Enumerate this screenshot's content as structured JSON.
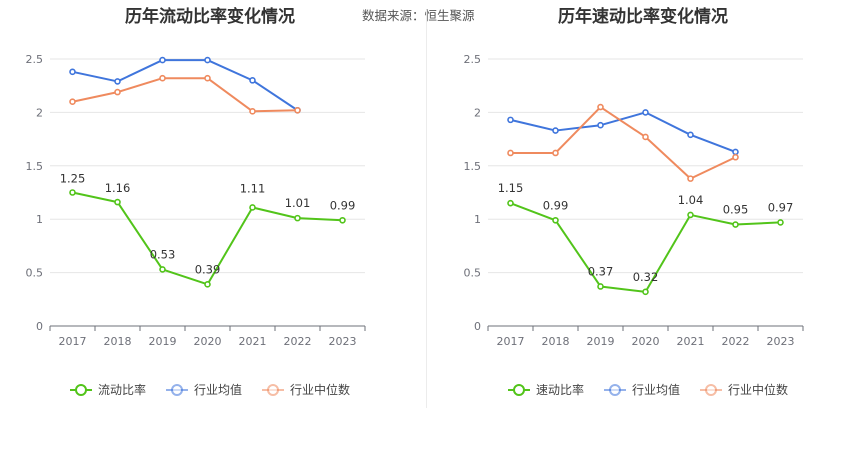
{
  "source_label": "数据来源：",
  "source_name": "恒生聚源",
  "colors": {
    "primary": "#52c41a",
    "avg": "#3f75dc",
    "median": "#ef8a5e"
  },
  "chart_data": [
    {
      "type": "line",
      "title": "历年流动比率变化情况",
      "categories": [
        "2017",
        "2018",
        "2019",
        "2020",
        "2021",
        "2022",
        "2023"
      ],
      "ylim": [
        0,
        2.5
      ],
      "yticks": [
        "0",
        "0.5",
        "1",
        "1.5",
        "2",
        "2.5"
      ],
      "series": [
        {
          "name": "流动比率",
          "color": "#52c41a",
          "values": [
            1.25,
            1.16,
            0.53,
            0.39,
            1.11,
            1.01,
            0.99
          ],
          "labels": [
            "1.25",
            "1.16",
            "0.53",
            "0.39",
            "1.11",
            "1.01",
            "0.99"
          ]
        },
        {
          "name": "行业均值",
          "color": "#3f75dc",
          "values": [
            2.38,
            2.29,
            2.49,
            2.49,
            2.3,
            2.02,
            null
          ]
        },
        {
          "name": "行业中位数",
          "color": "#ef8a5e",
          "values": [
            2.1,
            2.19,
            2.32,
            2.32,
            2.01,
            2.02,
            null
          ]
        }
      ]
    },
    {
      "type": "line",
      "title": "历年速动比率变化情况",
      "categories": [
        "2017",
        "2018",
        "2019",
        "2020",
        "2021",
        "2022",
        "2023"
      ],
      "ylim": [
        0,
        2.5
      ],
      "yticks": [
        "0",
        "0.5",
        "1",
        "1.5",
        "2",
        "2.5"
      ],
      "series": [
        {
          "name": "速动比率",
          "color": "#52c41a",
          "values": [
            1.15,
            0.99,
            0.37,
            0.32,
            1.04,
            0.95,
            0.97
          ],
          "labels": [
            "1.15",
            "0.99",
            "0.37",
            "0.32",
            "1.04",
            "0.95",
            "0.97"
          ]
        },
        {
          "name": "行业均值",
          "color": "#3f75dc",
          "values": [
            1.93,
            1.83,
            1.88,
            2.0,
            1.79,
            1.63,
            null
          ]
        },
        {
          "name": "行业中位数",
          "color": "#ef8a5e",
          "values": [
            1.62,
            1.62,
            2.05,
            1.77,
            1.38,
            1.58,
            null
          ]
        }
      ]
    }
  ]
}
